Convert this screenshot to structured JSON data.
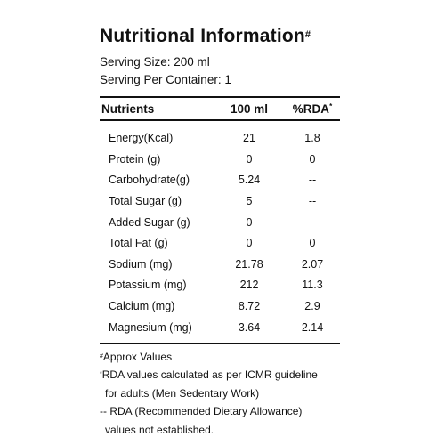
{
  "title": "Nutritional Information",
  "title_mark": "#",
  "serving_size": "Serving Size: 200 ml",
  "servings_per_container": "Serving Per Container: 1",
  "table": {
    "headers": {
      "nutrients": "Nutrients",
      "per_100ml": "100 ml",
      "rda": "%RDA",
      "rda_mark": "*"
    },
    "rows": [
      {
        "name": "Energy(Kcal)",
        "per_100ml": "21",
        "rda": "1.8"
      },
      {
        "name": "Protein (g)",
        "per_100ml": "0",
        "rda": "0"
      },
      {
        "name": "Carbohydrate(g)",
        "per_100ml": "5.24",
        "rda": "--"
      },
      {
        "name": "Total Sugar (g)",
        "per_100ml": "5",
        "rda": "--"
      },
      {
        "name": "Added Sugar (g)",
        "per_100ml": "0",
        "rda": "--"
      },
      {
        "name": "Total Fat (g)",
        "per_100ml": "0",
        "rda": "0"
      },
      {
        "name": "Sodium (mg)",
        "per_100ml": "21.78",
        "rda": "2.07"
      },
      {
        "name": "Potassium (mg)",
        "per_100ml": "212",
        "rda": "11.3"
      },
      {
        "name": "Calcium (mg)",
        "per_100ml": "8.72",
        "rda": "2.9"
      },
      {
        "name": "Magnesium (mg)",
        "per_100ml": "3.64",
        "rda": "2.14"
      }
    ]
  },
  "notes": {
    "approx_mark": "#",
    "approx": "Approx Values",
    "rda_mark": "*",
    "rda_line1": "RDA values calculated as per ICMR guideline",
    "rda_line2": "for adults (Men Sedentary Work)",
    "dash_line1": "-- RDA (Recommended Dietary Allowance)",
    "dash_line2": "values not established."
  }
}
